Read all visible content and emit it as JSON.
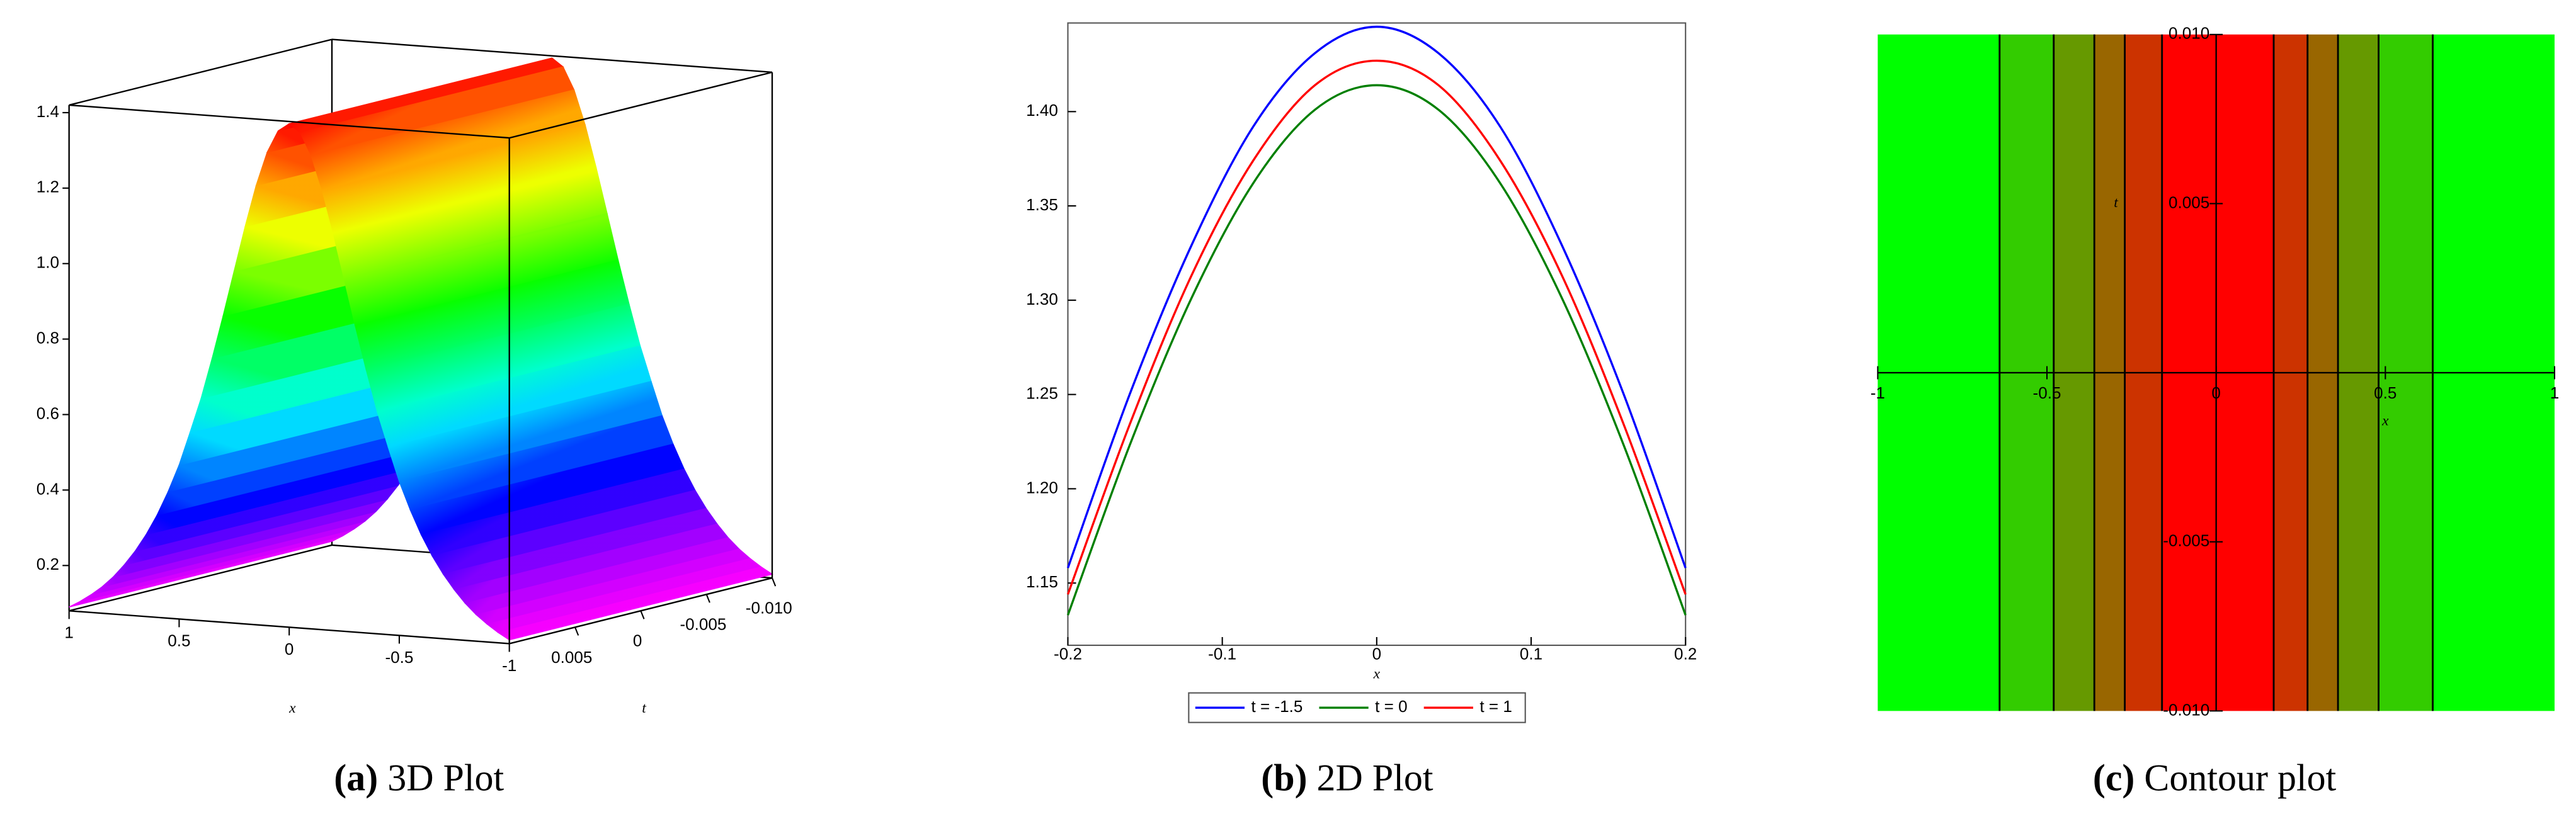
{
  "chart_data": [
    {
      "type": "surface3d",
      "caption_label": "(a)",
      "caption": "3D Plot",
      "x_label": "x",
      "y_label": "t",
      "colormap": "rainbow",
      "x": [
        -1,
        -0.95,
        -0.9,
        -0.85,
        -0.8,
        -0.75,
        -0.7,
        -0.65,
        -0.6,
        -0.55,
        -0.5,
        -0.45,
        -0.4,
        -0.35,
        -0.3,
        -0.25,
        -0.2,
        -0.15,
        -0.1,
        -0.05,
        0,
        0.05,
        0.1,
        0.15,
        0.2,
        0.25,
        0.3,
        0.35,
        0.4,
        0.45,
        0.5,
        0.55,
        0.6,
        0.65,
        0.7,
        0.75,
        0.8,
        0.85,
        0.9,
        0.95,
        1
      ],
      "z": [
        0.09,
        0.107,
        0.127,
        0.15,
        0.178,
        0.212,
        0.251,
        0.297,
        0.351,
        0.415,
        0.488,
        0.577,
        0.669,
        0.777,
        0.892,
        1.013,
        1.133,
        1.244,
        1.334,
        1.393,
        1.414,
        1.393,
        1.334,
        1.244,
        1.133,
        1.013,
        0.892,
        0.777,
        0.669,
        0.577,
        0.488,
        0.415,
        0.351,
        0.297,
        0.251,
        0.212,
        0.178,
        0.15,
        0.127,
        0.107,
        0.09
      ],
      "xlim": [
        -1,
        1
      ],
      "ylim": [
        -0.01,
        0.01
      ],
      "zlim": [
        0.08,
        1.42
      ],
      "xticks": [
        1,
        0.5,
        0,
        -0.5,
        -1
      ],
      "yticks": [
        0.005,
        0,
        -0.005,
        {
          "value": -0.01,
          "label": "-0.010"
        }
      ],
      "zticks": [
        0.2,
        0.4,
        0.6,
        0.8,
        {
          "value": 1.0,
          "label": "1.0"
        },
        1.2,
        1.4
      ]
    },
    {
      "type": "line",
      "caption_label": "(b)",
      "caption": "2D Plot",
      "x_label": "x",
      "x": [
        -0.2,
        -0.16,
        -0.12,
        -0.08,
        -0.04,
        0,
        0.04,
        0.08,
        0.12,
        0.16,
        0.2
      ],
      "series": [
        {
          "name": "t = -1.5",
          "color": "#0000ff",
          "values": [
            1.158,
            1.25,
            1.329,
            1.392,
            1.431,
            1.445,
            1.431,
            1.392,
            1.329,
            1.25,
            1.158
          ]
        },
        {
          "name": "t = 0",
          "color": "#008000",
          "values": [
            1.133,
            1.223,
            1.301,
            1.362,
            1.401,
            1.414,
            1.401,
            1.362,
            1.301,
            1.223,
            1.133
          ]
        },
        {
          "name": "t = 1",
          "color": "#ff0000",
          "values": [
            1.144,
            1.234,
            1.313,
            1.374,
            1.414,
            1.427,
            1.414,
            1.374,
            1.313,
            1.234,
            1.144
          ]
        }
      ],
      "xlim": [
        -0.2,
        0.2
      ],
      "ylim": [
        1.117,
        1.447
      ],
      "xticks": [
        -0.2,
        -0.1,
        0,
        0.1,
        0.2
      ],
      "yticks": [
        1.15,
        {
          "value": 1.2,
          "label": "1.20"
        },
        1.25,
        {
          "value": 1.3,
          "label": "1.30"
        },
        1.35,
        {
          "value": 1.4,
          "label": "1.40"
        }
      ],
      "legend": "bottom"
    },
    {
      "type": "contour",
      "caption_label": "(c)",
      "caption": "Contour plot",
      "x_label": "x",
      "y_label": "t",
      "xlim": [
        -1,
        1
      ],
      "ylim": [
        -0.01,
        0.01
      ],
      "xticks": [
        -1,
        -0.5,
        0,
        0.5,
        1
      ],
      "yticks": [
        {
          "value": -0.01,
          "label": "-0.010"
        },
        -0.005,
        0.005,
        {
          "value": 0.01,
          "label": "0.010"
        }
      ],
      "contour_x": [
        -0.64,
        -0.48,
        -0.36,
        -0.27,
        -0.16,
        0.17,
        0.27,
        0.36,
        0.48,
        0.64
      ],
      "band_colors": [
        "#00ff00",
        "#33cc00",
        "#669900",
        "#996600",
        "#cc3300",
        "#ff0000",
        "#cc3300",
        "#996600",
        "#669900",
        "#33cc00",
        "#00ff00"
      ],
      "line_color": "#000000"
    }
  ]
}
